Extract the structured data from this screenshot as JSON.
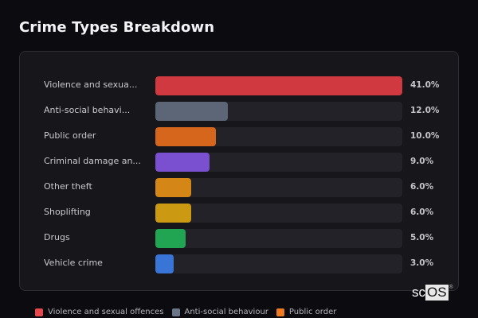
{
  "header": {
    "title": "Crime Types Breakdown"
  },
  "chart_data": {
    "type": "bar",
    "orientation": "horizontal",
    "title": "Crime Types Breakdown",
    "xlabel": "",
    "ylabel": "",
    "xlim": [
      0,
      41
    ],
    "grid": false,
    "legend_position": "bottom",
    "categories": [
      "Violence and sexual offences",
      "Anti-social behaviour",
      "Public order",
      "Criminal damage and arson",
      "Other theft",
      "Shoplifting",
      "Drugs",
      "Vehicle crime"
    ],
    "values": [
      41.0,
      12.0,
      10.0,
      9.0,
      6.0,
      6.0,
      5.0,
      3.0
    ]
  },
  "rows": [
    {
      "label": "Violence and sexua...",
      "value": 41.0,
      "pct": "41.0%",
      "color": "#d0393f"
    },
    {
      "label": "Anti-social behavi...",
      "value": 12.0,
      "pct": "12.0%",
      "color": "#5c6677"
    },
    {
      "label": "Public order",
      "value": 10.0,
      "pct": "10.0%",
      "color": "#d5661c"
    },
    {
      "label": "Criminal damage an...",
      "value": 9.0,
      "pct": "9.0%",
      "color": "#7a4fd0"
    },
    {
      "label": "Other theft",
      "value": 6.0,
      "pct": "6.0%",
      "color": "#d48716"
    },
    {
      "label": "Shoplifting",
      "value": 6.0,
      "pct": "6.0%",
      "color": "#cc9a12"
    },
    {
      "label": "Drugs",
      "value": 5.0,
      "pct": "5.0%",
      "color": "#22a552"
    },
    {
      "label": "Vehicle crime",
      "value": 3.0,
      "pct": "3.0%",
      "color": "#3975d6"
    }
  ],
  "legend": [
    {
      "label": "Violence and sexual offences",
      "color": "#e5484d"
    },
    {
      "label": "Anti-social behaviour",
      "color": "#6b7689"
    },
    {
      "label": "Public order",
      "color": "#f07a1f"
    }
  ],
  "watermark": {
    "prefix": "sc",
    "boxed": "OS",
    "reg": "®"
  }
}
